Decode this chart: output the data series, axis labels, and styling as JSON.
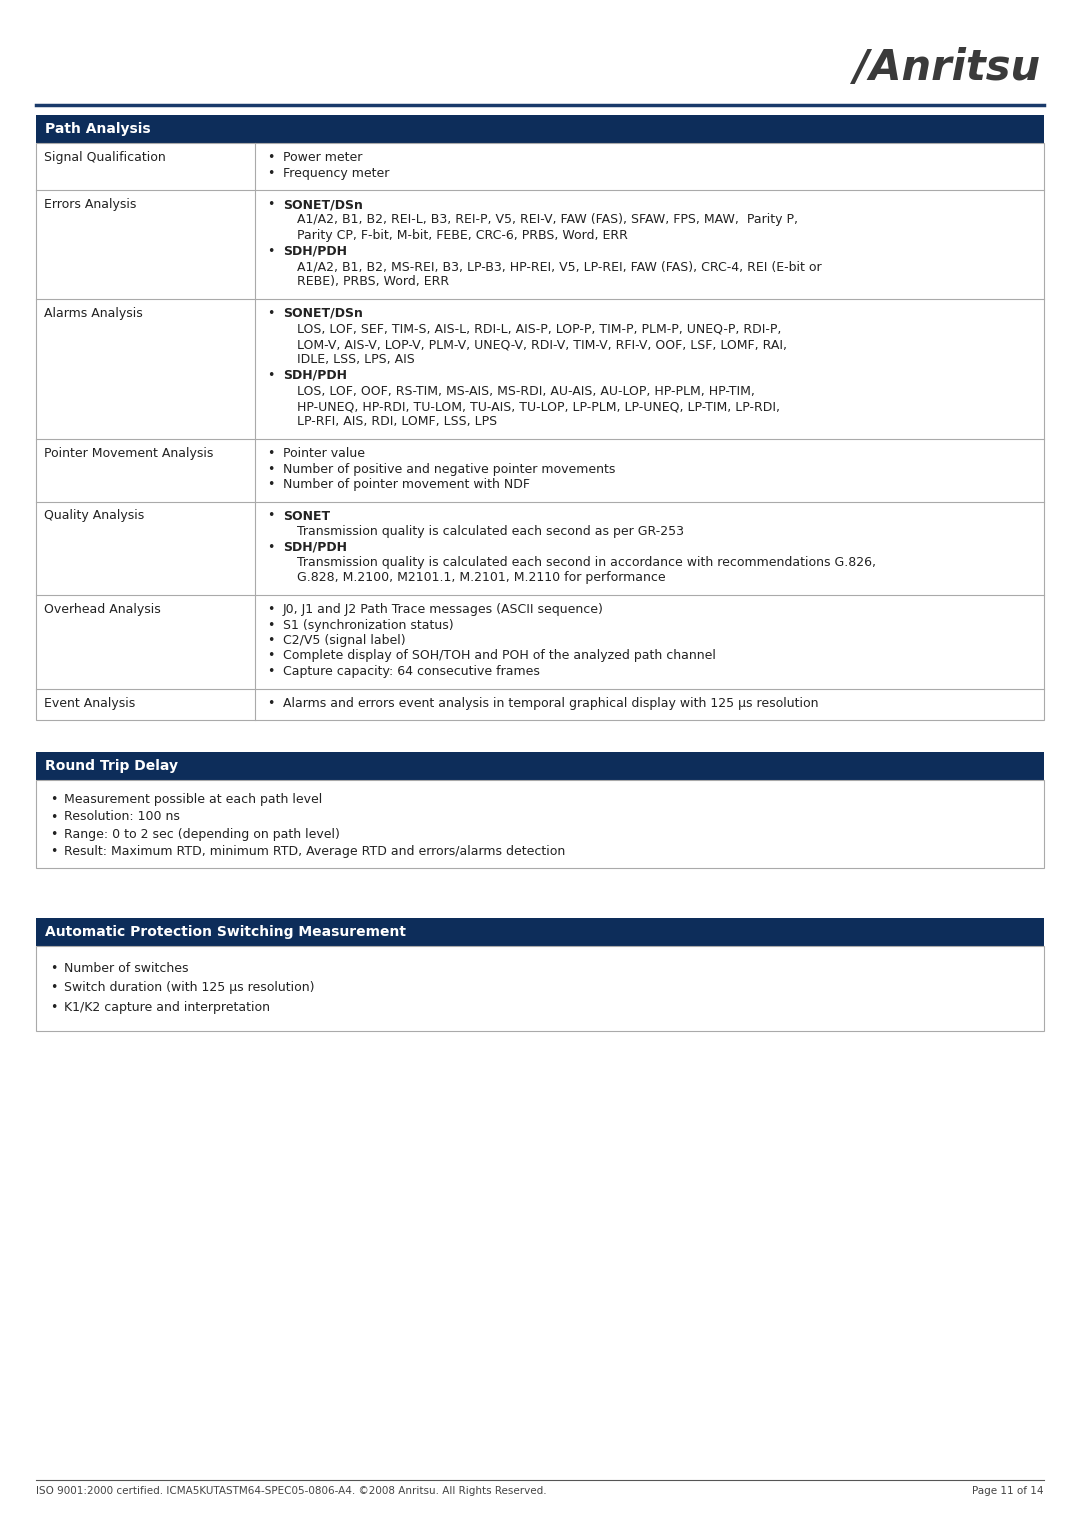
{
  "bg_color": "#ffffff",
  "header_color": "#0d2d5a",
  "header_text_color": "#ffffff",
  "border_color": "#aaaaaa",
  "text_color": "#222222",
  "footer_line_color": "#555555",
  "footer_left": "ISO 9001:2000 certified. ICMA5KUTASTM64-SPEC05-0806-A4. ©2008 Anritsu. All Rights Reserved.",
  "footer_right": "Page 11 of 14",
  "section1_title": "Path Analysis",
  "section2_title": "Round Trip Delay",
  "section3_title": "Automatic Protection Switching Measurement",
  "path_analysis_rows": [
    {
      "label": "Signal Qualification",
      "items": [
        {
          "bold": false,
          "bullet": true,
          "indent": 0,
          "text": "Power meter"
        },
        {
          "bold": false,
          "bullet": true,
          "indent": 0,
          "text": "Frequency meter"
        }
      ]
    },
    {
      "label": "Errors Analysis",
      "items": [
        {
          "bold": true,
          "bullet": true,
          "indent": 0,
          "text": "SONET/DSn"
        },
        {
          "bold": false,
          "bullet": false,
          "indent": 1,
          "text": "A1/A2, B1, B2, REI-L, B3, REI-P, V5, REI-V, FAW (FAS), SFAW, FPS, MAW,  Parity P,"
        },
        {
          "bold": false,
          "bullet": false,
          "indent": 1,
          "text": "Parity CP, F-bit, M-bit, FEBE, CRC-6, PRBS, Word, ERR"
        },
        {
          "bold": true,
          "bullet": true,
          "indent": 0,
          "text": "SDH/PDH"
        },
        {
          "bold": false,
          "bullet": false,
          "indent": 1,
          "text": "A1/A2, B1, B2, MS-REI, B3, LP-B3, HP-REI, V5, LP-REI, FAW (FAS), CRC-4, REI (E-bit or"
        },
        {
          "bold": false,
          "bullet": false,
          "indent": 1,
          "text": "REBE), PRBS, Word, ERR"
        }
      ]
    },
    {
      "label": "Alarms Analysis",
      "items": [
        {
          "bold": true,
          "bullet": true,
          "indent": 0,
          "text": "SONET/DSn"
        },
        {
          "bold": false,
          "bullet": false,
          "indent": 1,
          "text": "LOS, LOF, SEF, TIM-S, AIS-L, RDI-L, AIS-P, LOP-P, TIM-P, PLM-P, UNEQ-P, RDI-P,"
        },
        {
          "bold": false,
          "bullet": false,
          "indent": 1,
          "text": "LOM-V, AIS-V, LOP-V, PLM-V, UNEQ-V, RDI-V, TIM-V, RFI-V, OOF, LSF, LOMF, RAI,"
        },
        {
          "bold": false,
          "bullet": false,
          "indent": 1,
          "text": "IDLE, LSS, LPS, AIS"
        },
        {
          "bold": true,
          "bullet": true,
          "indent": 0,
          "text": "SDH/PDH"
        },
        {
          "bold": false,
          "bullet": false,
          "indent": 1,
          "text": "LOS, LOF, OOF, RS-TIM, MS-AIS, MS-RDI, AU-AIS, AU-LOP, HP-PLM, HP-TIM,"
        },
        {
          "bold": false,
          "bullet": false,
          "indent": 1,
          "text": "HP-UNEQ, HP-RDI, TU-LOM, TU-AIS, TU-LOP, LP-PLM, LP-UNEQ, LP-TIM, LP-RDI,"
        },
        {
          "bold": false,
          "bullet": false,
          "indent": 1,
          "text": "LP-RFI, AIS, RDI, LOMF, LSS, LPS"
        }
      ]
    },
    {
      "label": "Pointer Movement Analysis",
      "items": [
        {
          "bold": false,
          "bullet": true,
          "indent": 0,
          "text": "Pointer value"
        },
        {
          "bold": false,
          "bullet": true,
          "indent": 0,
          "text": "Number of positive and negative pointer movements"
        },
        {
          "bold": false,
          "bullet": true,
          "indent": 0,
          "text": "Number of pointer movement with NDF"
        }
      ]
    },
    {
      "label": "Quality Analysis",
      "items": [
        {
          "bold": true,
          "bullet": true,
          "indent": 0,
          "text": "SONET"
        },
        {
          "bold": false,
          "bullet": false,
          "indent": 1,
          "text": "Transmission quality is calculated each second as per GR-253"
        },
        {
          "bold": true,
          "bullet": true,
          "indent": 0,
          "text": "SDH/PDH"
        },
        {
          "bold": false,
          "bullet": false,
          "indent": 1,
          "text": "Transmission quality is calculated each second in accordance with recommendations G.826,"
        },
        {
          "bold": false,
          "bullet": false,
          "indent": 1,
          "text": "G.828, M.2100, M2101.1, M.2101, M.2110 for performance"
        }
      ]
    },
    {
      "label": "Overhead Analysis",
      "items": [
        {
          "bold": false,
          "bullet": true,
          "indent": 0,
          "text": "J0, J1 and J2 Path Trace messages (ASCII sequence)"
        },
        {
          "bold": false,
          "bullet": true,
          "indent": 0,
          "text": "S1 (synchronization status)"
        },
        {
          "bold": false,
          "bullet": true,
          "indent": 0,
          "text": "C2/V5 (signal label)"
        },
        {
          "bold": false,
          "bullet": true,
          "indent": 0,
          "text": "Complete display of SOH/TOH and POH of the analyzed path channel"
        },
        {
          "bold": false,
          "bullet": true,
          "indent": 0,
          "text": "Capture capacity: 64 consecutive frames"
        }
      ]
    },
    {
      "label": "Event Analysis",
      "items": [
        {
          "bold": false,
          "bullet": true,
          "indent": 0,
          "text": "Alarms and errors event analysis in temporal graphical display with 125 µs resolution"
        }
      ]
    }
  ],
  "rtd_items": [
    "Measurement possible at each path level",
    "Resolution: 100 ns",
    "Range: 0 to 2 sec (depending on path level)",
    "Result: Maximum RTD, minimum RTD, Average RTD and errors/alarms detection"
  ],
  "aps_items": [
    "Number of switches",
    "Switch duration (with 125 µs resolution)",
    "K1/K2 capture and interpretation"
  ]
}
